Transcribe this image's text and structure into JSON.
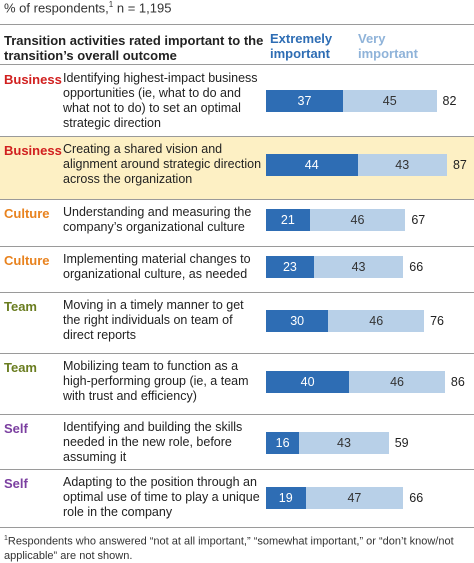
{
  "subtitle": "% of respondents,",
  "subtitle_sup": "1",
  "subtitle_n": "n = 1,195",
  "column_header": "Transition activities rated important to the transition’s overall outcome",
  "colors": {
    "Business": "#d1201f",
    "Culture": "#e8821e",
    "Team": "#6a7d20",
    "Self": "#7b3fa0",
    "extremely": "#2e6db4",
    "very": "#b8d0e8",
    "highlight": "#fdf0c4"
  },
  "chart_data": {
    "type": "bar",
    "stacked": true,
    "orientation": "horizontal",
    "series": [
      {
        "name": "Extremely important",
        "values": [
          37,
          44,
          21,
          23,
          30,
          40,
          16,
          19
        ]
      },
      {
        "name": "Very important",
        "values": [
          45,
          43,
          46,
          43,
          46,
          46,
          43,
          47
        ]
      }
    ],
    "totals": [
      82,
      87,
      67,
      66,
      76,
      86,
      59,
      66
    ],
    "highlighted_row": 1,
    "rows": [
      {
        "category": "Business",
        "label": "Identifying highest-impact business opportunities (ie, what to do and what not to do) to set an optimal strategic direction"
      },
      {
        "category": "Business",
        "label": "Creating a shared vision and alignment around strategic direction across the organization"
      },
      {
        "category": "Culture",
        "label": "Understanding and measuring the company’s organizational culture"
      },
      {
        "category": "Culture",
        "label": "Implementing material changes to organizational culture, as needed"
      },
      {
        "category": "Team",
        "label": "Moving in a timely manner to get the right individuals on team of direct reports"
      },
      {
        "category": "Team",
        "label": "Mobilizing team to function as a high-performing group (ie, a team with trust and efficiency)"
      },
      {
        "category": "Self",
        "label": "Identifying and building the skills needed in the new role, before assuming it"
      },
      {
        "category": "Self",
        "label": "Adapting to the position through an optimal use of time to play a unique role in the company"
      }
    ]
  },
  "footnote_sup": "1",
  "footnote": "Respondents who answered “not at all important,” “somewhat important,” or “don’t know/not applicable” are not shown."
}
